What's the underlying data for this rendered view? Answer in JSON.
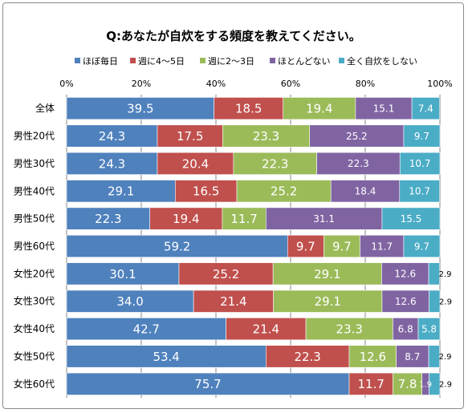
{
  "chart_data": {
    "type": "bar",
    "stacked": true,
    "orientation": "horizontal",
    "percent_stacked": true,
    "title": "Q:あなたが自炊をする頻度を教えてください。",
    "categories": [
      "全体",
      "男性20代",
      "男性30代",
      "男性40代",
      "男性50代",
      "男性60代",
      "女性20代",
      "女性30代",
      "女性40代",
      "女性50代",
      "女性60代"
    ],
    "series": [
      {
        "name": "ほぼ毎日",
        "color": "#4f81bd",
        "values": [
          39.5,
          24.3,
          24.3,
          29.1,
          22.3,
          59.2,
          30.1,
          34.0,
          42.7,
          53.4,
          75.7
        ],
        "labels": [
          "39.5",
          "24.3",
          "24.3",
          "29.1",
          "22.3",
          "59.2",
          "30.1",
          "34.0",
          "42.7",
          "53.4",
          "75.7"
        ]
      },
      {
        "name": "週に4～5日",
        "color": "#c0504d",
        "values": [
          18.5,
          17.5,
          20.4,
          16.5,
          19.4,
          9.7,
          25.2,
          21.4,
          21.4,
          22.3,
          11.7
        ],
        "labels": [
          "18.5",
          "17.5",
          "20.4",
          "16.5",
          "19.4",
          "9.7",
          "25.2",
          "21.4",
          "21.4",
          "22.3",
          "11.7"
        ]
      },
      {
        "name": "週に2～3日",
        "color": "#9bbb59",
        "values": [
          19.4,
          23.3,
          22.3,
          25.2,
          11.7,
          9.7,
          29.1,
          29.1,
          23.3,
          12.6,
          7.8
        ],
        "labels": [
          "19.4",
          "23.3",
          "22.3",
          "25.2",
          "11.7",
          "9.7",
          "29.1",
          "29.1",
          "23.3",
          "12.6",
          "7.8"
        ]
      },
      {
        "name": "ほとんどない",
        "color": "#8064a2",
        "values": [
          15.1,
          25.2,
          22.3,
          18.4,
          31.1,
          11.7,
          12.6,
          12.6,
          6.8,
          8.7,
          1.9
        ],
        "labels": [
          "15.1",
          "25.2",
          "22.3",
          "18.4",
          "31.1",
          "11.7",
          "12.6",
          "12.6",
          "6.8",
          "8.7",
          "1.9"
        ]
      },
      {
        "name": "全く自炊をしない",
        "color": "#4bacc6",
        "values": [
          7.4,
          9.7,
          10.7,
          10.7,
          15.5,
          9.7,
          2.9,
          2.9,
          5.8,
          2.9,
          2.9
        ],
        "labels": [
          "7.4",
          "9.7",
          "10.7",
          "10.7",
          "15.5",
          "9.7",
          "2.9",
          "2.9",
          "5.8",
          "2.9",
          "2.9"
        ]
      }
    ],
    "xlim": [
      0,
      100
    ],
    "x_ticks": [
      "0%",
      "20%",
      "40%",
      "60%",
      "80%",
      "100%"
    ],
    "x_tick_values": [
      0,
      20,
      40,
      60,
      80,
      100
    ],
    "grid": true,
    "legend_position": "top"
  }
}
